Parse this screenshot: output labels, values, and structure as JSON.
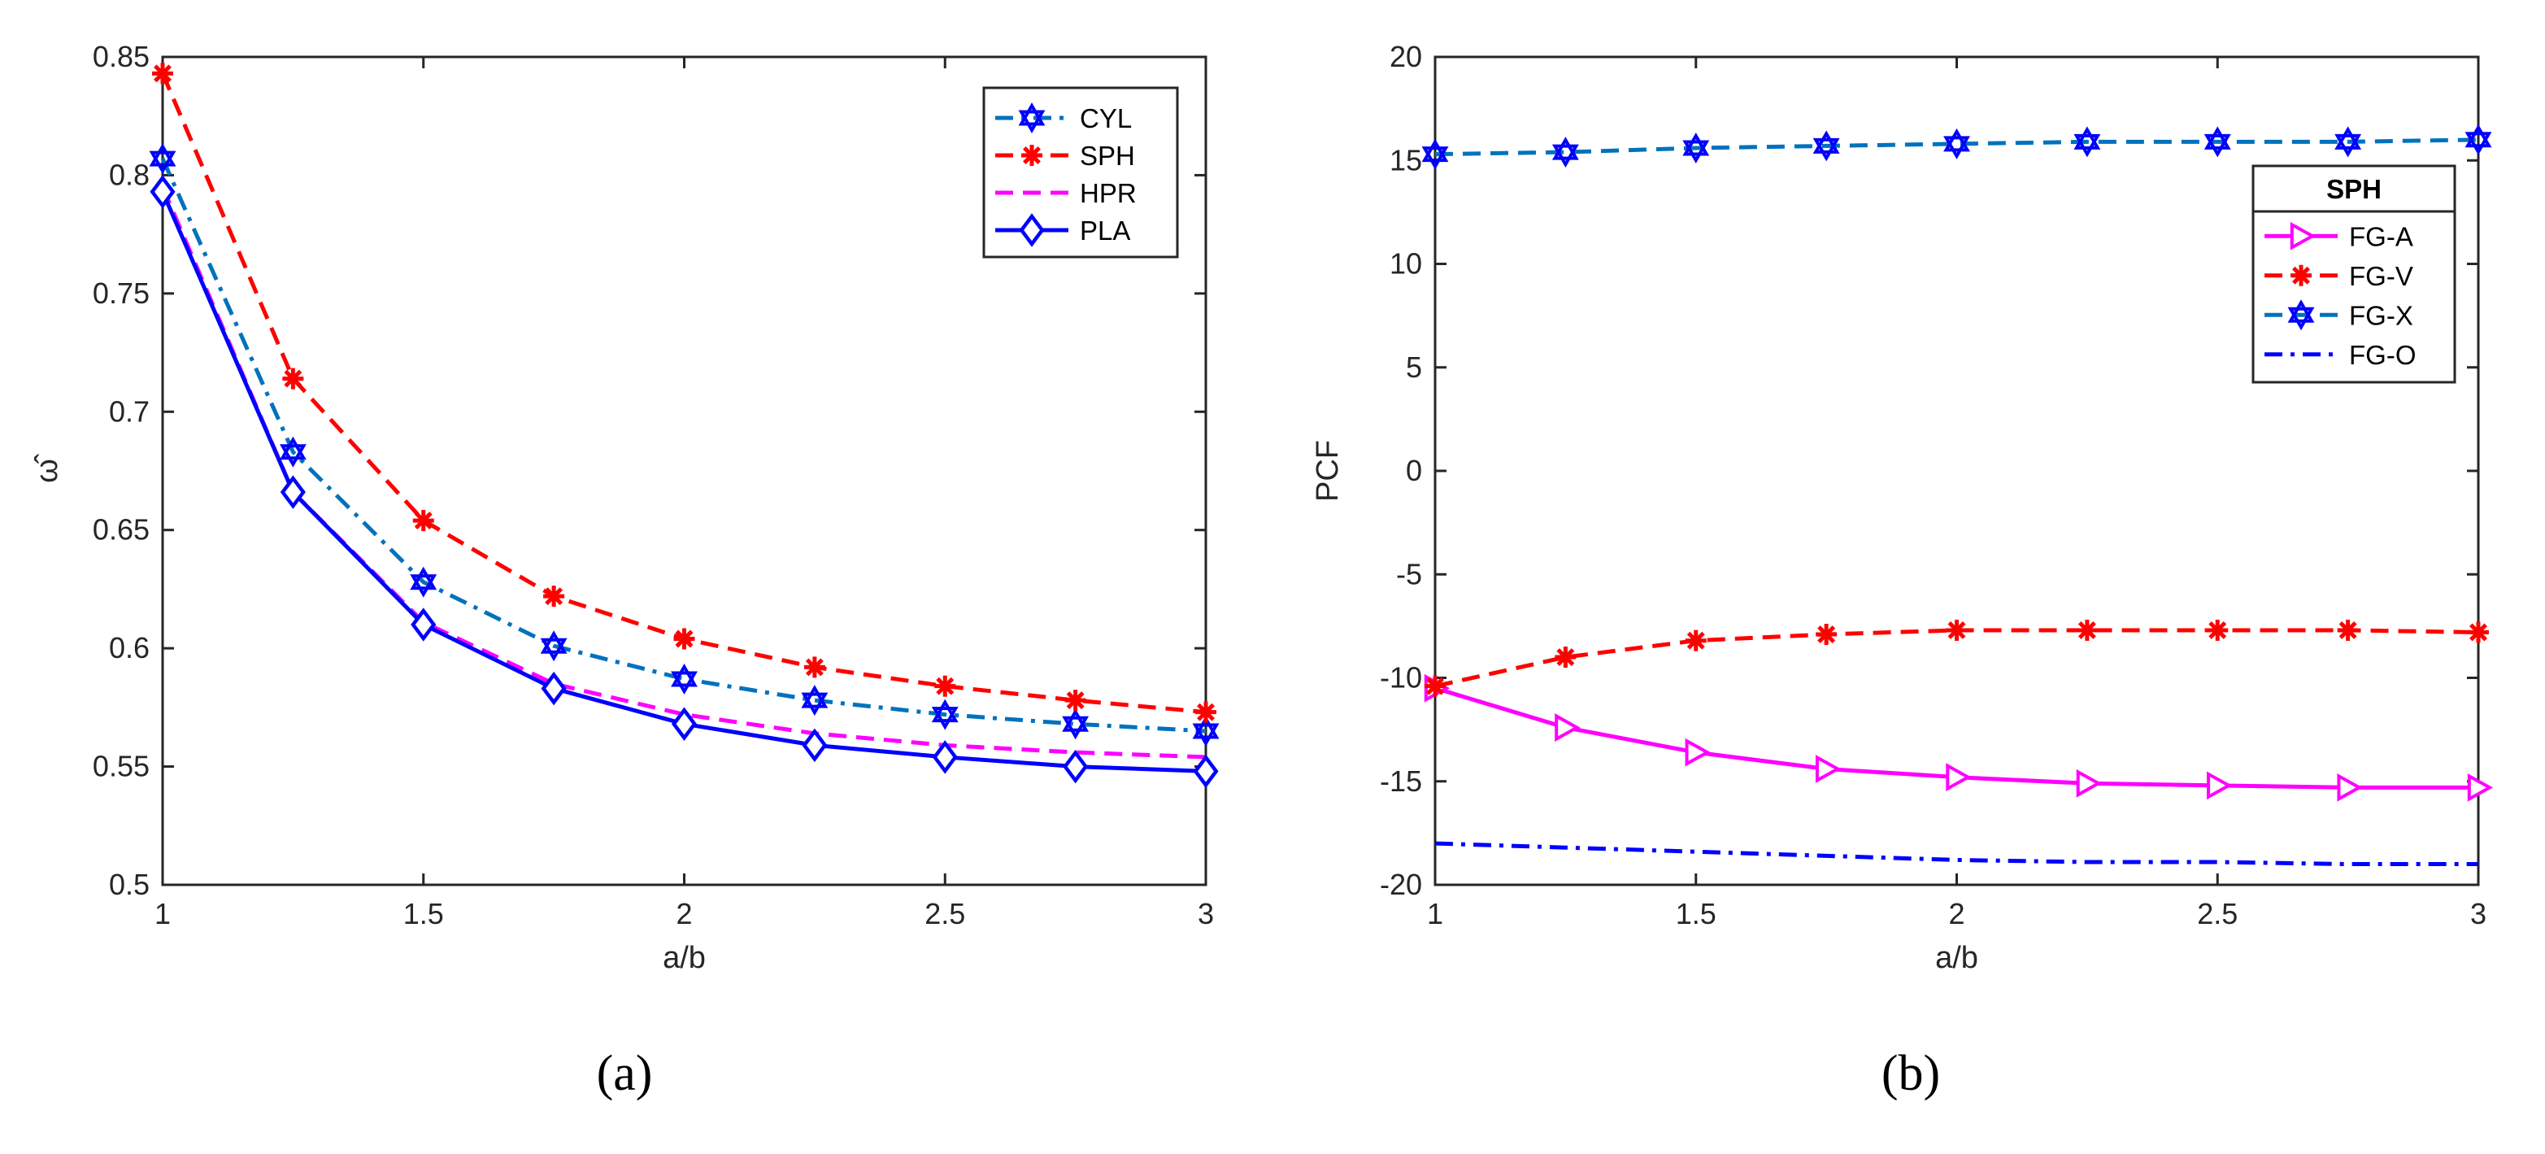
{
  "chart_data": [
    {
      "type": "line",
      "caption": "(a)",
      "xlabel": "a/b",
      "ylabel": "ω̂",
      "xlim": [
        1,
        3
      ],
      "ylim": [
        0.5,
        0.85
      ],
      "xticks": [
        1,
        1.5,
        2,
        2.5,
        3
      ],
      "xtick_labels": [
        "1",
        "1.5",
        "2",
        "2.5",
        "3"
      ],
      "yticks": [
        0.5,
        0.55,
        0.6,
        0.65,
        0.7,
        0.75,
        0.8,
        0.85
      ],
      "ytick_labels": [
        "0.5",
        "0.55",
        "0.6",
        "0.65",
        "0.7",
        "0.75",
        "0.8",
        "0.85"
      ],
      "legend_position": "top-right",
      "x": [
        1,
        1.25,
        1.5,
        1.75,
        2,
        2.25,
        2.5,
        2.75,
        3
      ],
      "series": [
        {
          "name": "CYL",
          "color": "#0072BD",
          "marker_color": "#0000FF",
          "dash": "dashdot",
          "marker": "hexagram",
          "values": [
            0.807,
            0.683,
            0.628,
            0.601,
            0.587,
            0.578,
            0.572,
            0.568,
            0.565
          ]
        },
        {
          "name": "SPH",
          "color": "#FF0000",
          "marker_color": "#FF0000",
          "dash": "dashed",
          "marker": "asterisk",
          "values": [
            0.843,
            0.714,
            0.654,
            0.622,
            0.604,
            0.592,
            0.584,
            0.578,
            0.573
          ]
        },
        {
          "name": "HPR",
          "color": "#FF00FF",
          "marker_color": "#FF00FF",
          "dash": "dashed",
          "marker": "none",
          "values": [
            0.795,
            0.666,
            0.611,
            0.585,
            0.572,
            0.564,
            0.559,
            0.556,
            0.554
          ]
        },
        {
          "name": "PLA",
          "color": "#0000FF",
          "marker_color": "#0000FF",
          "dash": "solid",
          "marker": "diamond",
          "values": [
            0.793,
            0.666,
            0.61,
            0.583,
            0.568,
            0.559,
            0.554,
            0.55,
            0.548
          ]
        }
      ]
    },
    {
      "type": "line",
      "caption": "(b)",
      "xlabel": "a/b",
      "ylabel": "PCF",
      "xlim": [
        1,
        3
      ],
      "ylim": [
        -20,
        20
      ],
      "xticks": [
        1,
        1.5,
        2,
        2.5,
        3
      ],
      "xtick_labels": [
        "1",
        "1.5",
        "2",
        "2.5",
        "3"
      ],
      "yticks": [
        -20,
        -15,
        -10,
        -5,
        0,
        5,
        10,
        15,
        20
      ],
      "ytick_labels": [
        "-20",
        "-15",
        "-10",
        "-5",
        "0",
        "5",
        "10",
        "15",
        "20"
      ],
      "legend_title": "SPH",
      "legend_position": "right",
      "x": [
        1,
        1.25,
        1.5,
        1.75,
        2,
        2.25,
        2.5,
        2.75,
        3
      ],
      "series": [
        {
          "name": "FG-A",
          "color": "#FF00FF",
          "marker_color": "#FF00FF",
          "dash": "solid",
          "marker": "triangle-right",
          "values": [
            -10.5,
            -12.4,
            -13.6,
            -14.4,
            -14.8,
            -15.1,
            -15.2,
            -15.3,
            -15.3
          ]
        },
        {
          "name": "FG-V",
          "color": "#FF0000",
          "marker_color": "#FF0000",
          "dash": "dashed",
          "marker": "asterisk",
          "values": [
            -10.4,
            -9.0,
            -8.2,
            -7.9,
            -7.7,
            -7.7,
            -7.7,
            -7.7,
            -7.8
          ]
        },
        {
          "name": "FG-X",
          "color": "#0072BD",
          "marker_color": "#0000FF",
          "dash": "dashed",
          "marker": "hexagram",
          "values": [
            15.3,
            15.4,
            15.6,
            15.7,
            15.8,
            15.9,
            15.9,
            15.9,
            16.0
          ]
        },
        {
          "name": "FG-O",
          "color": "#0000FF",
          "marker_color": "#0000FF",
          "dash": "dashdot",
          "marker": "none",
          "values": [
            -18.0,
            -18.2,
            -18.4,
            -18.6,
            -18.8,
            -18.9,
            -18.9,
            -19.0,
            -19.0
          ]
        }
      ]
    }
  ]
}
